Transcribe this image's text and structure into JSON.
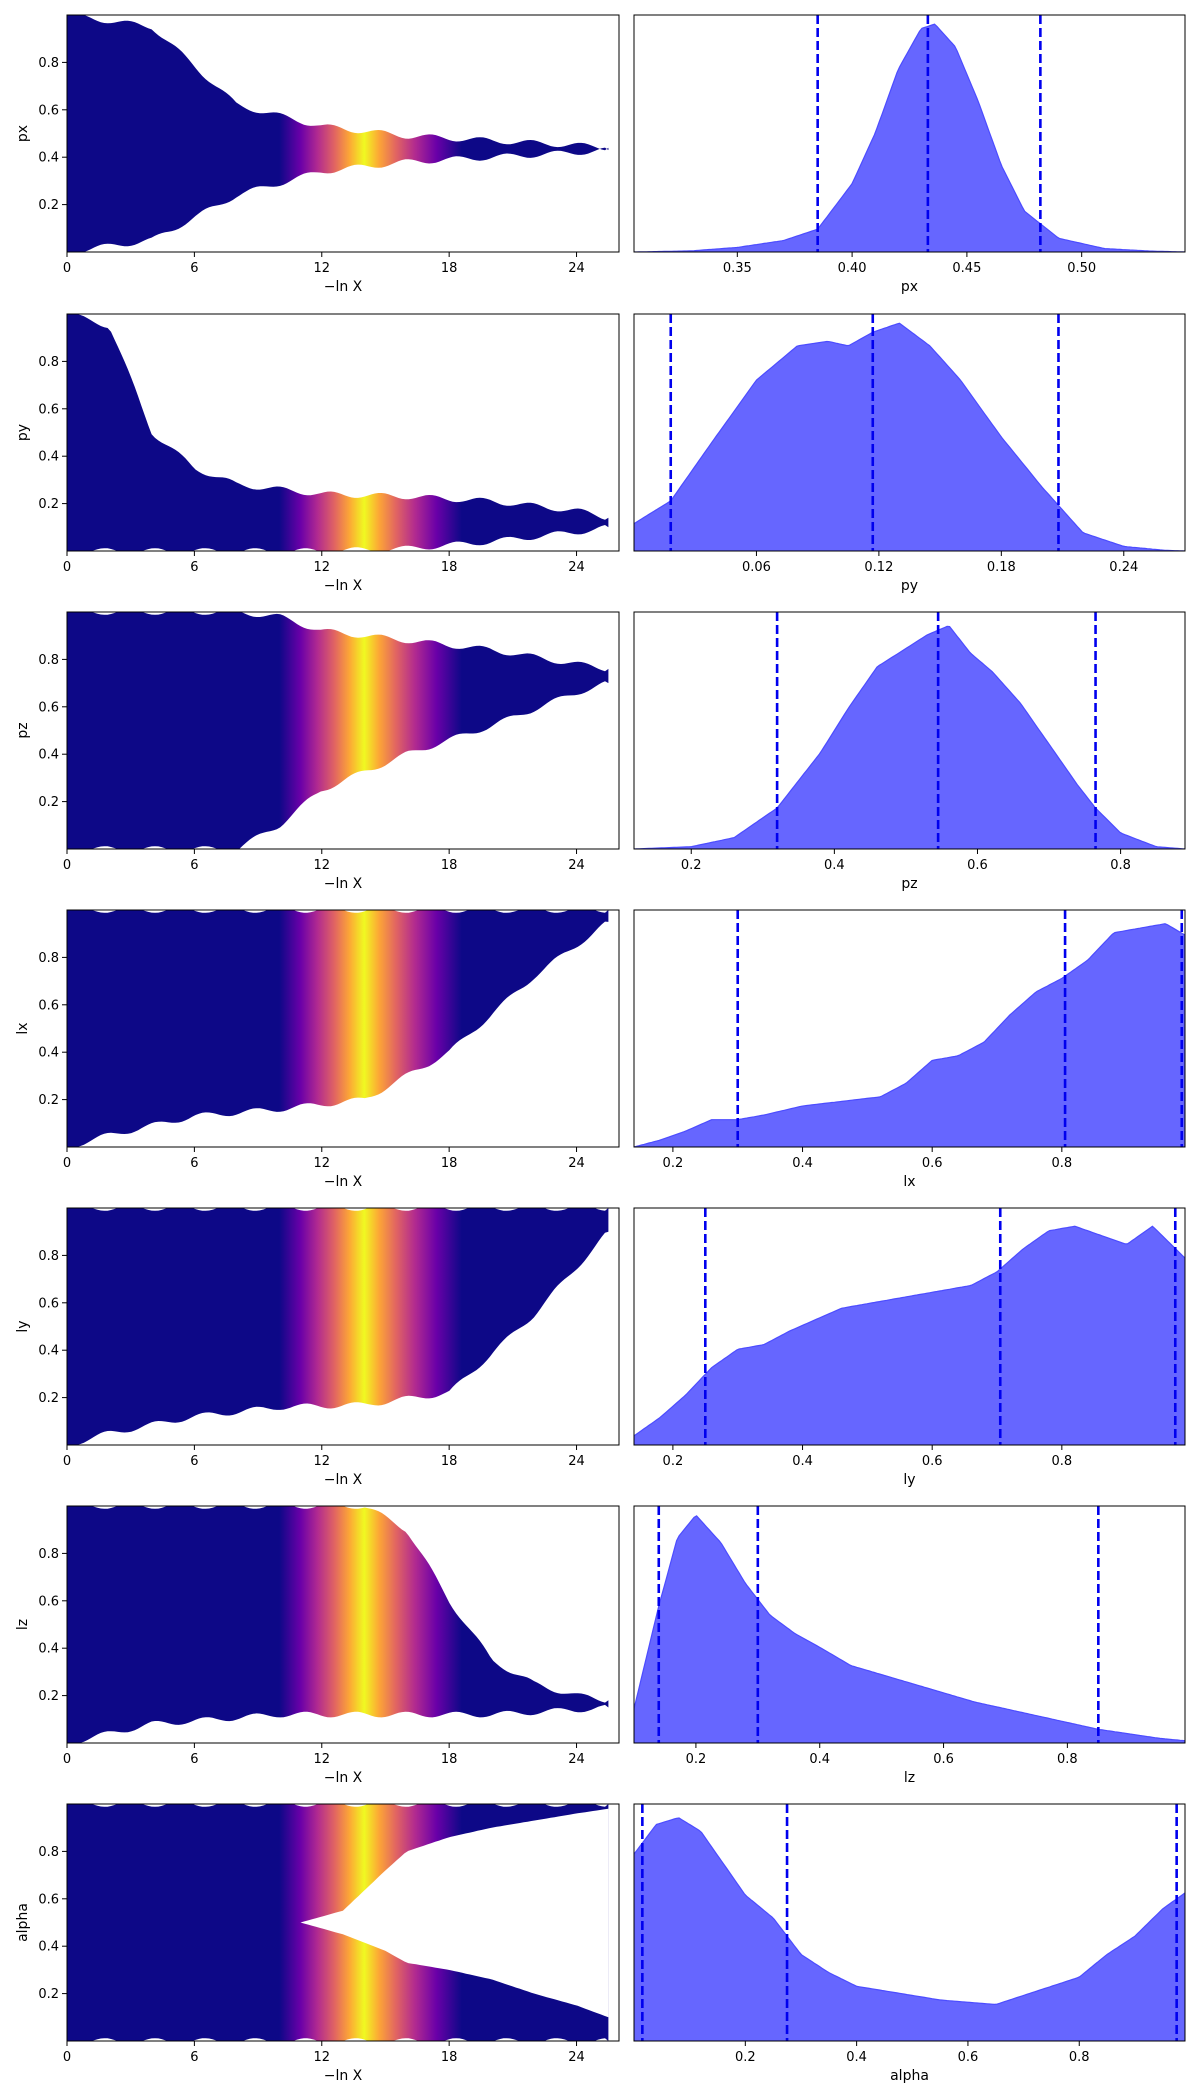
{
  "scatter_xlabel": "−ln X",
  "palette": {
    "kde_fill": "#6666ff",
    "kde_line": "#4c4cff",
    "quantile_line": "#0000ee",
    "plasma_low": "#0d0887",
    "plasma_high": "#f0f921"
  },
  "chart_data": [
    {
      "type": "scatter",
      "param": "px",
      "xlabel": "−ln X",
      "ylabel": "px",
      "xlim": [
        0,
        26
      ],
      "ylim": [
        0,
        1
      ],
      "xticks": [
        "0",
        "6",
        "12",
        "18",
        "24"
      ],
      "yticks": [
        "0.2",
        "0.4",
        "0.6",
        "0.8"
      ],
      "color_peak_at": 14.0,
      "funnel": {
        "x": [
          0,
          4,
          8,
          12,
          16,
          20,
          24,
          25.5
        ],
        "lo": [
          0,
          0.05,
          0.24,
          0.34,
          0.38,
          0.4,
          0.42,
          0.43
        ],
        "hi": [
          1,
          0.95,
          0.62,
          0.53,
          0.49,
          0.47,
          0.45,
          0.44
        ]
      }
    },
    {
      "type": "area",
      "param": "px",
      "xlabel": "px",
      "xlim": [
        0.305,
        0.545
      ],
      "xticks": [
        "0.35",
        "0.40",
        "0.45",
        "0.50"
      ],
      "quantiles": [
        0.385,
        0.433,
        0.482
      ],
      "density": {
        "x": [
          0.305,
          0.33,
          0.35,
          0.37,
          0.385,
          0.4,
          0.41,
          0.42,
          0.43,
          0.436,
          0.445,
          0.455,
          0.465,
          0.475,
          0.49,
          0.51,
          0.53,
          0.545
        ],
        "y": [
          0,
          0.005,
          0.02,
          0.05,
          0.1,
          0.3,
          0.52,
          0.8,
          0.98,
          1.0,
          0.9,
          0.66,
          0.38,
          0.18,
          0.06,
          0.015,
          0.004,
          0
        ]
      }
    },
    {
      "type": "scatter",
      "param": "py",
      "xlabel": "−ln X",
      "ylabel": "py",
      "xlim": [
        0,
        26
      ],
      "ylim": [
        0,
        1
      ],
      "xticks": [
        "0",
        "6",
        "12",
        "18",
        "24"
      ],
      "yticks": [
        "0.2",
        "0.4",
        "0.6",
        "0.8"
      ],
      "color_peak_at": 14.0,
      "funnel": {
        "x": [
          0,
          2,
          4,
          6,
          8,
          12,
          16,
          20,
          24,
          25.5
        ],
        "lo": [
          0,
          0,
          0,
          0,
          0,
          0,
          0.01,
          0.04,
          0.08,
          0.1
        ],
        "hi": [
          1,
          0.95,
          0.5,
          0.35,
          0.28,
          0.24,
          0.23,
          0.21,
          0.17,
          0.14
        ]
      }
    },
    {
      "type": "area",
      "param": "py",
      "xlabel": "py",
      "xlim": [
        0.0,
        0.27
      ],
      "xticks": [
        "0.06",
        "0.12",
        "0.18",
        "0.24"
      ],
      "quantiles": [
        0.018,
        0.117,
        0.208
      ],
      "density": {
        "x": [
          0.0,
          0.018,
          0.04,
          0.06,
          0.08,
          0.095,
          0.105,
          0.117,
          0.13,
          0.145,
          0.16,
          0.18,
          0.2,
          0.208,
          0.22,
          0.24,
          0.26,
          0.27
        ],
        "y": [
          0.12,
          0.22,
          0.5,
          0.75,
          0.9,
          0.92,
          0.9,
          0.96,
          1.0,
          0.9,
          0.75,
          0.5,
          0.28,
          0.2,
          0.08,
          0.02,
          0.003,
          0
        ]
      }
    },
    {
      "type": "scatter",
      "param": "pz",
      "xlabel": "−ln X",
      "ylabel": "pz",
      "xlim": [
        0,
        26
      ],
      "ylim": [
        0,
        1
      ],
      "xticks": [
        "0",
        "6",
        "12",
        "18",
        "24"
      ],
      "yticks": [
        "0.2",
        "0.4",
        "0.6",
        "0.8"
      ],
      "color_peak_at": 14.0,
      "funnel": {
        "x": [
          0,
          4,
          8,
          10,
          12,
          16,
          20,
          24,
          25.5
        ],
        "lo": [
          0,
          0,
          0,
          0.1,
          0.25,
          0.4,
          0.52,
          0.66,
          0.7
        ],
        "hi": [
          1,
          1,
          1,
          0.98,
          0.92,
          0.88,
          0.84,
          0.78,
          0.76
        ]
      }
    },
    {
      "type": "area",
      "param": "pz",
      "xlabel": "pz",
      "xlim": [
        0.12,
        0.89
      ],
      "xticks": [
        "0.2",
        "0.4",
        "0.6",
        "0.8"
      ],
      "quantiles": [
        0.32,
        0.545,
        0.765
      ],
      "density": {
        "x": [
          0.12,
          0.2,
          0.26,
          0.32,
          0.38,
          0.42,
          0.46,
          0.5,
          0.53,
          0.56,
          0.59,
          0.62,
          0.66,
          0.7,
          0.74,
          0.765,
          0.8,
          0.85,
          0.89
        ],
        "y": [
          0,
          0.01,
          0.05,
          0.18,
          0.42,
          0.62,
          0.8,
          0.88,
          0.94,
          0.98,
          0.86,
          0.78,
          0.64,
          0.46,
          0.28,
          0.18,
          0.07,
          0.01,
          0
        ]
      }
    },
    {
      "type": "scatter",
      "param": "lx",
      "xlabel": "−ln X",
      "ylabel": "lx",
      "xlim": [
        0,
        26
      ],
      "ylim": [
        0,
        1
      ],
      "xticks": [
        "0",
        "6",
        "12",
        "18",
        "24"
      ],
      "yticks": [
        "0.2",
        "0.4",
        "0.6",
        "0.8"
      ],
      "color_peak_at": 14.0,
      "funnel": {
        "x": [
          0,
          2,
          6,
          10,
          14,
          18,
          22,
          25.5
        ],
        "lo": [
          0,
          0.05,
          0.13,
          0.16,
          0.2,
          0.4,
          0.72,
          0.95
        ],
        "hi": [
          1,
          1,
          1,
          1,
          1,
          1,
          1,
          1
        ]
      }
    },
    {
      "type": "area",
      "param": "lx",
      "xlabel": "lx",
      "xlim": [
        0.14,
        0.99
      ],
      "xticks": [
        "0.2",
        "0.4",
        "0.6",
        "0.8"
      ],
      "quantiles": [
        0.3,
        0.805,
        0.985
      ],
      "density": {
        "x": [
          0.14,
          0.18,
          0.22,
          0.26,
          0.3,
          0.34,
          0.4,
          0.46,
          0.52,
          0.56,
          0.6,
          0.64,
          0.68,
          0.72,
          0.76,
          0.8,
          0.84,
          0.88,
          0.92,
          0.96,
          0.99
        ],
        "y": [
          0,
          0.03,
          0.07,
          0.12,
          0.12,
          0.14,
          0.18,
          0.2,
          0.22,
          0.28,
          0.38,
          0.4,
          0.46,
          0.58,
          0.68,
          0.74,
          0.82,
          0.94,
          0.96,
          0.98,
          0.93
        ]
      }
    },
    {
      "type": "scatter",
      "param": "ly",
      "xlabel": "−ln X",
      "ylabel": "ly",
      "xlim": [
        0,
        26
      ],
      "ylim": [
        0,
        1
      ],
      "xticks": [
        "0",
        "6",
        "12",
        "18",
        "24"
      ],
      "yticks": [
        "0.2",
        "0.4",
        "0.6",
        "0.8"
      ],
      "color_peak_at": 14.0,
      "funnel": {
        "x": [
          0,
          2,
          6,
          10,
          14,
          18,
          22,
          25.5
        ],
        "lo": [
          0,
          0.05,
          0.12,
          0.16,
          0.17,
          0.22,
          0.55,
          0.9
        ],
        "hi": [
          1,
          1,
          1,
          1,
          1,
          1,
          1,
          1
        ]
      }
    },
    {
      "type": "area",
      "param": "ly",
      "xlabel": "ly",
      "xlim": [
        0.14,
        0.99
      ],
      "xticks": [
        "0.2",
        "0.4",
        "0.6",
        "0.8"
      ],
      "quantiles": [
        0.25,
        0.705,
        0.975
      ],
      "density": {
        "x": [
          0.14,
          0.18,
          0.22,
          0.26,
          0.3,
          0.34,
          0.38,
          0.42,
          0.46,
          0.5,
          0.54,
          0.58,
          0.62,
          0.66,
          0.7,
          0.74,
          0.78,
          0.82,
          0.86,
          0.9,
          0.94,
          0.99
        ],
        "y": [
          0.04,
          0.12,
          0.22,
          0.34,
          0.42,
          0.44,
          0.5,
          0.55,
          0.6,
          0.62,
          0.64,
          0.66,
          0.68,
          0.7,
          0.76,
          0.86,
          0.94,
          0.96,
          0.92,
          0.88,
          0.96,
          0.82
        ]
      }
    },
    {
      "type": "scatter",
      "param": "lz",
      "xlabel": "−ln X",
      "ylabel": "lz",
      "xlim": [
        0,
        26
      ],
      "ylim": [
        0,
        1
      ],
      "xticks": [
        "0",
        "6",
        "12",
        "18",
        "24"
      ],
      "yticks": [
        "0.2",
        "0.4",
        "0.6",
        "0.8"
      ],
      "color_peak_at": 14.0,
      "funnel": {
        "x": [
          0,
          4,
          10,
          12,
          14,
          16,
          18,
          20,
          22,
          24,
          25.5
        ],
        "lo": [
          0,
          0.08,
          0.12,
          0.12,
          0.12,
          0.12,
          0.12,
          0.12,
          0.13,
          0.14,
          0.15
        ],
        "hi": [
          1,
          1,
          1,
          1,
          1,
          0.9,
          0.6,
          0.35,
          0.25,
          0.2,
          0.18
        ]
      }
    },
    {
      "type": "area",
      "param": "lz",
      "xlabel": "lz",
      "xlim": [
        0.1,
        0.99
      ],
      "xticks": [
        "0.2",
        "0.4",
        "0.6",
        "0.8"
      ],
      "quantiles": [
        0.14,
        0.3,
        0.85
      ],
      "density": {
        "x": [
          0.1,
          0.14,
          0.17,
          0.2,
          0.24,
          0.28,
          0.32,
          0.36,
          0.4,
          0.45,
          0.5,
          0.55,
          0.6,
          0.65,
          0.7,
          0.75,
          0.8,
          0.85,
          0.9,
          0.95,
          0.99
        ],
        "y": [
          0.15,
          0.6,
          0.9,
          1.0,
          0.88,
          0.7,
          0.56,
          0.48,
          0.42,
          0.34,
          0.3,
          0.26,
          0.22,
          0.18,
          0.15,
          0.12,
          0.09,
          0.06,
          0.04,
          0.02,
          0.01
        ]
      }
    },
    {
      "type": "scatter",
      "param": "alpha",
      "xlabel": "−ln X",
      "ylabel": "alpha",
      "xlim": [
        0,
        26
      ],
      "ylim": [
        0,
        1
      ],
      "xticks": [
        "0",
        "6",
        "12",
        "18",
        "24"
      ],
      "yticks": [
        "0.2",
        "0.4",
        "0.6",
        "0.8"
      ],
      "color_peak_at": 14.0,
      "funnel": {
        "x": [
          0,
          10,
          12,
          14,
          16,
          18,
          20,
          22,
          25.5
        ],
        "lo": [
          0,
          0,
          0,
          0,
          0,
          0,
          0,
          0,
          0
        ],
        "hi": [
          1,
          1,
          1,
          1,
          1,
          1,
          1,
          1,
          1
        ]
      },
      "gap": {
        "x": [
          11,
          13,
          15,
          16,
          18,
          20,
          22,
          24,
          25.5
        ],
        "lo": [
          0.5,
          0.45,
          0.38,
          0.33,
          0.3,
          0.26,
          0.2,
          0.15,
          0.1
        ],
        "hi": [
          0.5,
          0.55,
          0.72,
          0.8,
          0.86,
          0.9,
          0.93,
          0.96,
          0.98
        ]
      }
    },
    {
      "type": "area",
      "param": "alpha",
      "xlabel": "alpha",
      "xlim": [
        0.0,
        0.99
      ],
      "xticks": [
        "0.2",
        "0.4",
        "0.6",
        "0.8"
      ],
      "quantiles": [
        0.015,
        0.275,
        0.975
      ],
      "density": {
        "x": [
          0.0,
          0.04,
          0.08,
          0.12,
          0.16,
          0.2,
          0.25,
          0.3,
          0.35,
          0.4,
          0.45,
          0.5,
          0.55,
          0.6,
          0.65,
          0.7,
          0.75,
          0.8,
          0.85,
          0.9,
          0.95,
          0.99
        ],
        "y": [
          0.82,
          0.95,
          0.98,
          0.92,
          0.78,
          0.64,
          0.54,
          0.38,
          0.3,
          0.24,
          0.22,
          0.2,
          0.18,
          0.17,
          0.16,
          0.2,
          0.24,
          0.28,
          0.38,
          0.46,
          0.58,
          0.65
        ]
      }
    }
  ]
}
